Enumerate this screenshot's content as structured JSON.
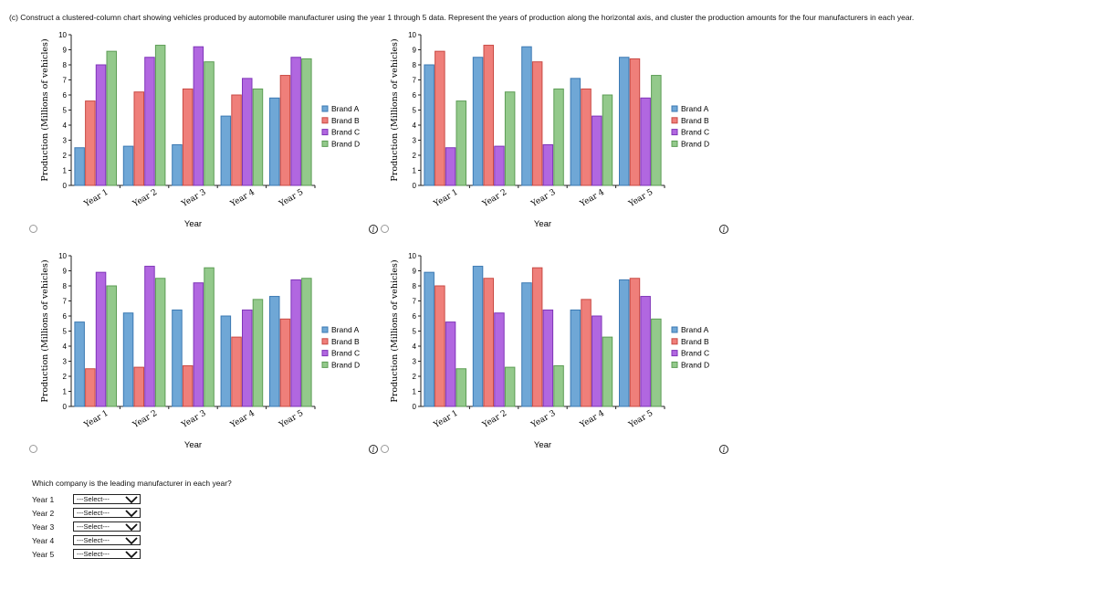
{
  "question": "(c)  Construct a clustered-column chart showing vehicles produced by automobile manufacturer using the year 1 through 5 data. Represent the years of production along the horizontal axis, and cluster the production amounts for the four manufacturers in each year.",
  "colors": {
    "Brand A": {
      "fill": "#6fa7d6",
      "stroke": "#3b79b3"
    },
    "Brand B": {
      "fill": "#ef7f7a",
      "stroke": "#c94a44"
    },
    "Brand C": {
      "fill": "#b167e0",
      "stroke": "#7f35b8"
    },
    "Brand D": {
      "fill": "#93c98b",
      "stroke": "#5d9d55"
    }
  },
  "chart_data": [
    {
      "id": "chart1",
      "type": "bar",
      "xlabel": "Year",
      "ylabel": "Production (Millions of vehicles)",
      "ylim": [
        0,
        10
      ],
      "yticks": [
        0,
        1,
        2,
        3,
        4,
        5,
        6,
        7,
        8,
        9,
        10
      ],
      "categories": [
        "Year 1",
        "Year 2",
        "Year 3",
        "Year 4",
        "Year 5"
      ],
      "series": [
        {
          "name": "Brand A",
          "values": [
            2.5,
            2.6,
            2.7,
            4.6,
            5.8
          ]
        },
        {
          "name": "Brand B",
          "values": [
            5.6,
            6.2,
            6.4,
            6.0,
            7.3
          ]
        },
        {
          "name": "Brand C",
          "values": [
            8.0,
            8.5,
            9.2,
            7.1,
            8.5
          ]
        },
        {
          "name": "Brand D",
          "values": [
            8.9,
            9.3,
            8.2,
            6.4,
            8.4
          ]
        }
      ]
    },
    {
      "id": "chart2",
      "type": "bar",
      "xlabel": "Year",
      "ylabel": "Production (Millions of vehicles)",
      "ylim": [
        0,
        10
      ],
      "yticks": [
        0,
        1,
        2,
        3,
        4,
        5,
        6,
        7,
        8,
        9,
        10
      ],
      "categories": [
        "Year 1",
        "Year 2",
        "Year 3",
        "Year 4",
        "Year 5"
      ],
      "series": [
        {
          "name": "Brand A",
          "values": [
            8.0,
            8.5,
            9.2,
            7.1,
            8.5
          ]
        },
        {
          "name": "Brand B",
          "values": [
            8.9,
            9.3,
            8.2,
            6.4,
            8.4
          ]
        },
        {
          "name": "Brand C",
          "values": [
            2.5,
            2.6,
            2.7,
            4.6,
            5.8
          ]
        },
        {
          "name": "Brand D",
          "values": [
            5.6,
            6.2,
            6.4,
            6.0,
            7.3
          ]
        }
      ]
    },
    {
      "id": "chart3",
      "type": "bar",
      "xlabel": "Year",
      "ylabel": "Production (Millions of vehicles)",
      "ylim": [
        0,
        10
      ],
      "yticks": [
        0,
        1,
        2,
        3,
        4,
        5,
        6,
        7,
        8,
        9,
        10
      ],
      "categories": [
        "Year 1",
        "Year 2",
        "Year 3",
        "Year 4",
        "Year 5"
      ],
      "series": [
        {
          "name": "Brand A",
          "values": [
            5.6,
            6.2,
            6.4,
            6.0,
            7.3
          ]
        },
        {
          "name": "Brand B",
          "values": [
            2.5,
            2.6,
            2.7,
            4.6,
            5.8
          ]
        },
        {
          "name": "Brand C",
          "values": [
            8.9,
            9.3,
            8.2,
            6.4,
            8.4
          ]
        },
        {
          "name": "Brand D",
          "values": [
            8.0,
            8.5,
            9.2,
            7.1,
            8.5
          ]
        }
      ]
    },
    {
      "id": "chart4",
      "type": "bar",
      "xlabel": "Year",
      "ylabel": "Production (Millions of vehicles)",
      "ylim": [
        0,
        10
      ],
      "yticks": [
        0,
        1,
        2,
        3,
        4,
        5,
        6,
        7,
        8,
        9,
        10
      ],
      "categories": [
        "Year 1",
        "Year 2",
        "Year 3",
        "Year 4",
        "Year 5"
      ],
      "series": [
        {
          "name": "Brand A",
          "values": [
            8.9,
            9.3,
            8.2,
            6.4,
            8.4
          ]
        },
        {
          "name": "Brand B",
          "values": [
            8.0,
            8.5,
            9.2,
            7.1,
            8.5
          ]
        },
        {
          "name": "Brand C",
          "values": [
            5.6,
            6.2,
            6.4,
            6.0,
            7.3
          ]
        },
        {
          "name": "Brand D",
          "values": [
            2.5,
            2.6,
            2.7,
            4.6,
            5.8
          ]
        }
      ]
    }
  ],
  "leader_question": "Which company is the leading manufacturer in each year?",
  "leader_rows": [
    {
      "label": "Year 1",
      "value": "---Select---"
    },
    {
      "label": "Year 2",
      "value": "---Select---"
    },
    {
      "label": "Year 3",
      "value": "---Select---"
    },
    {
      "label": "Year 4",
      "value": "---Select---"
    },
    {
      "label": "Year 5",
      "value": "---Select---"
    }
  ],
  "icons": {
    "radio": "radio-button",
    "info": "info-icon",
    "select_arrow": "chevron-down-icon"
  },
  "info_glyph": "i"
}
